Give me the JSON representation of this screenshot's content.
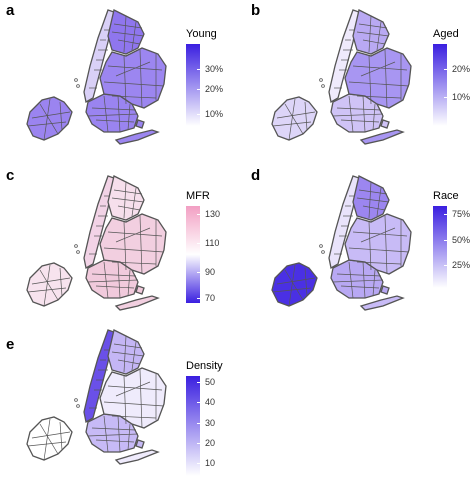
{
  "panels": [
    {
      "letter": "a",
      "legend": {
        "title": "Young",
        "labels": [
          "30%",
          "20%",
          "10%"
        ],
        "label_fracs": [
          0.3,
          0.55,
          0.85
        ],
        "colors": [
          "#ffffff",
          "#3a1fe0"
        ]
      }
    },
    {
      "letter": "b",
      "legend": {
        "title": "Aged",
        "labels": [
          "20%",
          "10%"
        ],
        "label_fracs": [
          0.3,
          0.65
        ],
        "colors": [
          "#ffffff",
          "#3a1fe0"
        ]
      }
    },
    {
      "letter": "c",
      "legend": {
        "title": "MFR",
        "labels": [
          "130",
          "110",
          "90",
          "70"
        ],
        "label_fracs": [
          0.08,
          0.38,
          0.68,
          0.95
        ],
        "colors": [
          "#3a1fe0",
          "#ffffff",
          "#f29fc3"
        ]
      }
    },
    {
      "letter": "d",
      "legend": {
        "title": "Race",
        "labels": [
          "75%",
          "50%",
          "25%"
        ],
        "label_fracs": [
          0.1,
          0.42,
          0.72
        ],
        "colors": [
          "#ffffff",
          "#3a1fe0"
        ]
      }
    },
    {
      "letter": "e",
      "legend": {
        "title": "Density",
        "labels": [
          "50",
          "40",
          "30",
          "20",
          "10"
        ],
        "label_fracs": [
          0.06,
          0.26,
          0.47,
          0.67,
          0.87
        ],
        "colors": [
          "#ffffff",
          "#3a1fe0"
        ]
      }
    }
  ],
  "map_style": {
    "border_color": "#555555",
    "fills": {
      "a": {
        "staten": "#9b84f0",
        "manhattan": "#d9d0f7",
        "bronx": "#8f76ee",
        "brooklyn": "#9a84f0",
        "queens": "#9c86f0"
      },
      "b": {
        "staten": "#ddd5f8",
        "manhattan": "#efeafc",
        "bronx": "#b9a9f3",
        "brooklyn": "#cfc3f6",
        "queens": "#a896f2"
      },
      "c": {
        "staten": "#f7e3ee",
        "manhattan": "#f2d3e6",
        "bronx": "#f6dfec",
        "brooklyn": "#f1cadc",
        "queens": "#f2cfe0"
      },
      "d": {
        "staten": "#4a30e4",
        "manhattan": "#e9e3fb",
        "bronx": "#9c86f0",
        "brooklyn": "#b8a8f3",
        "queens": "#c8bbf6"
      },
      "e": {
        "staten": "#ffffff",
        "manhattan": "#6a50e8",
        "bronx": "#c4b6f5",
        "brooklyn": "#c7baf6",
        "queens": "#efebfc"
      }
    }
  }
}
